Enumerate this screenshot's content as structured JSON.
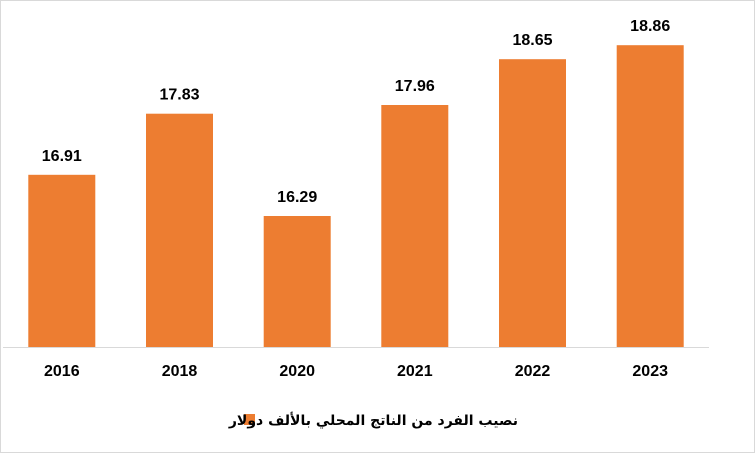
{
  "chart_data": {
    "type": "bar",
    "categories": [
      "2016",
      "2018",
      "2020",
      "2021",
      "2022",
      "2023"
    ],
    "series": [
      {
        "name": "نصيب الفرد من الناتج المحلي بالألف دولار",
        "values": [
          16.91,
          17.83,
          16.29,
          17.96,
          18.65,
          18.86
        ],
        "labels": [
          "16.91",
          "17.83",
          "16.29",
          "17.96",
          "18.65",
          "18.86"
        ]
      }
    ],
    "ylim": [
      14.32,
      19.54
    ],
    "grid": false,
    "legend_position": "bottom",
    "bar_color": "#ED7D31",
    "axis_color": "#D9D9D9"
  }
}
